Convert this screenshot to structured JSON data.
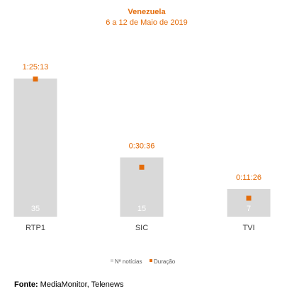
{
  "chart_data": {
    "type": "bar",
    "title": "Venezuela",
    "subtitle": "6 a 12 de Maio de 2019",
    "categories": [
      "RTP1",
      "SIC",
      "TVI"
    ],
    "series": [
      {
        "name": "Nº notícias",
        "type": "bar",
        "values": [
          35,
          15,
          7
        ],
        "value_labels": [
          "35",
          "15",
          "7"
        ],
        "color": "#d9d9d9"
      },
      {
        "name": "Duração",
        "type": "point",
        "values_seconds": [
          5113,
          1836,
          686
        ],
        "value_labels": [
          "1:25:13",
          "0:30:36",
          "0:11:26"
        ],
        "color": "#e46c0a"
      }
    ],
    "ylim": [
      0,
      40
    ],
    "grid": false,
    "legend_position": "bottom"
  },
  "source": {
    "label": "Fonte:",
    "text": " MediaMonitor, Telenews"
  }
}
